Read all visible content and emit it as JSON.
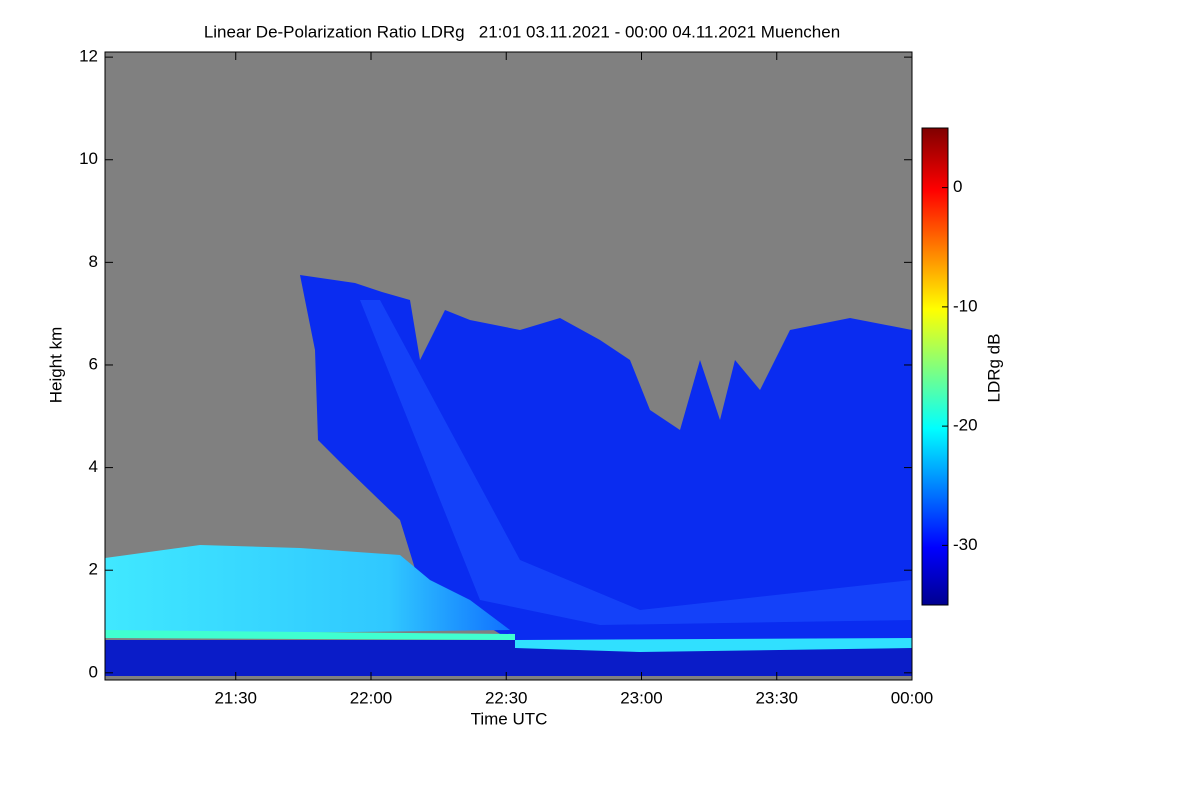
{
  "chart_data": {
    "type": "heatmap",
    "title": "Linear De-Polarization Ratio LDRg   21:01 03.11.2021 - 00:00 04.11.2021 Muenchen",
    "xlabel": "Time UTC",
    "ylabel": "Height km",
    "xlim": [
      21.0167,
      24
    ],
    "xticks": [
      {
        "value": 21.5,
        "label": "21:30"
      },
      {
        "value": 22,
        "label": "22:00"
      },
      {
        "value": 22.5,
        "label": "22:30"
      },
      {
        "value": 23,
        "label": "23:00"
      },
      {
        "value": 23.5,
        "label": "23:30"
      },
      {
        "value": 24,
        "label": "00:00"
      }
    ],
    "ylim": [
      -0.14,
      12.1
    ],
    "yticks": [
      0,
      2,
      4,
      6,
      8,
      10,
      12
    ],
    "colorbar": {
      "label": "LDRg dB",
      "lim": [
        -35,
        5
      ],
      "ticks": [
        0,
        -10,
        -20,
        -30
      ]
    }
  }
}
